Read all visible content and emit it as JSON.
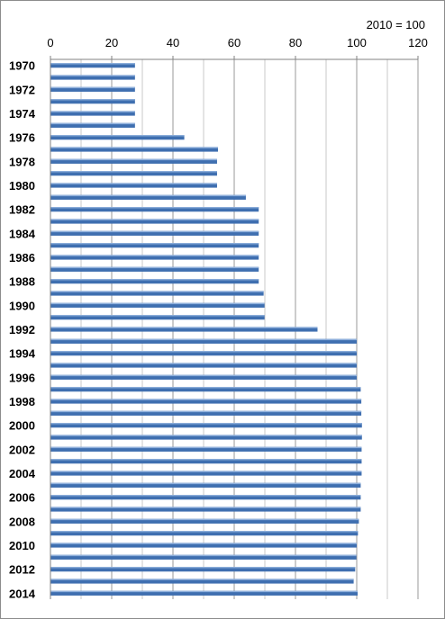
{
  "chart_data": {
    "type": "bar",
    "orientation": "horizontal",
    "note": "2010 = 100",
    "xlim": [
      0,
      120
    ],
    "x_ticks": [
      "0",
      "20",
      "40",
      "60",
      "80",
      "100",
      "120"
    ],
    "grid": true,
    "categories": [
      "1970",
      "1971",
      "1972",
      "1973",
      "1974",
      "1975",
      "1976",
      "1977",
      "1978",
      "1979",
      "1980",
      "1981",
      "1982",
      "1983",
      "1984",
      "1985",
      "1986",
      "1987",
      "1988",
      "1989",
      "1990",
      "1991",
      "1992",
      "1993",
      "1994",
      "1995",
      "1996",
      "1997",
      "1998",
      "1999",
      "2000",
      "2001",
      "2002",
      "2003",
      "2004",
      "2005",
      "2006",
      "2007",
      "2008",
      "2009",
      "2010",
      "2011",
      "2012",
      "2013",
      "2014"
    ],
    "category_labels": [
      "1970",
      "",
      "1972",
      "",
      "1974",
      "",
      "1976",
      "",
      "1978",
      "",
      "1980",
      "",
      "1982",
      "",
      "1984",
      "",
      "1986",
      "",
      "1988",
      "",
      "1990",
      "",
      "1992",
      "",
      "1994",
      "",
      "1996",
      "",
      "1998",
      "",
      "2000",
      "",
      "2002",
      "",
      "2004",
      "",
      "2006",
      "",
      "2008",
      "",
      "2010",
      "",
      "2012",
      "",
      "2014"
    ],
    "values": [
      27.6,
      27.6,
      27.6,
      27.6,
      27.6,
      27.6,
      43.7,
      54.7,
      54.4,
      54.4,
      54.4,
      63.8,
      68.0,
      68.0,
      68.0,
      68.0,
      68.0,
      68.0,
      68.0,
      69.6,
      69.9,
      69.9,
      87.2,
      100.0,
      100.0,
      100.0,
      100.0,
      101.3,
      101.5,
      101.5,
      101.7,
      101.7,
      101.6,
      101.6,
      101.6,
      101.3,
      101.3,
      101.3,
      100.7,
      100.4,
      100.0,
      99.9,
      99.5,
      99.0,
      100.3
    ],
    "color": "#3f6fb0",
    "legend": "none"
  }
}
